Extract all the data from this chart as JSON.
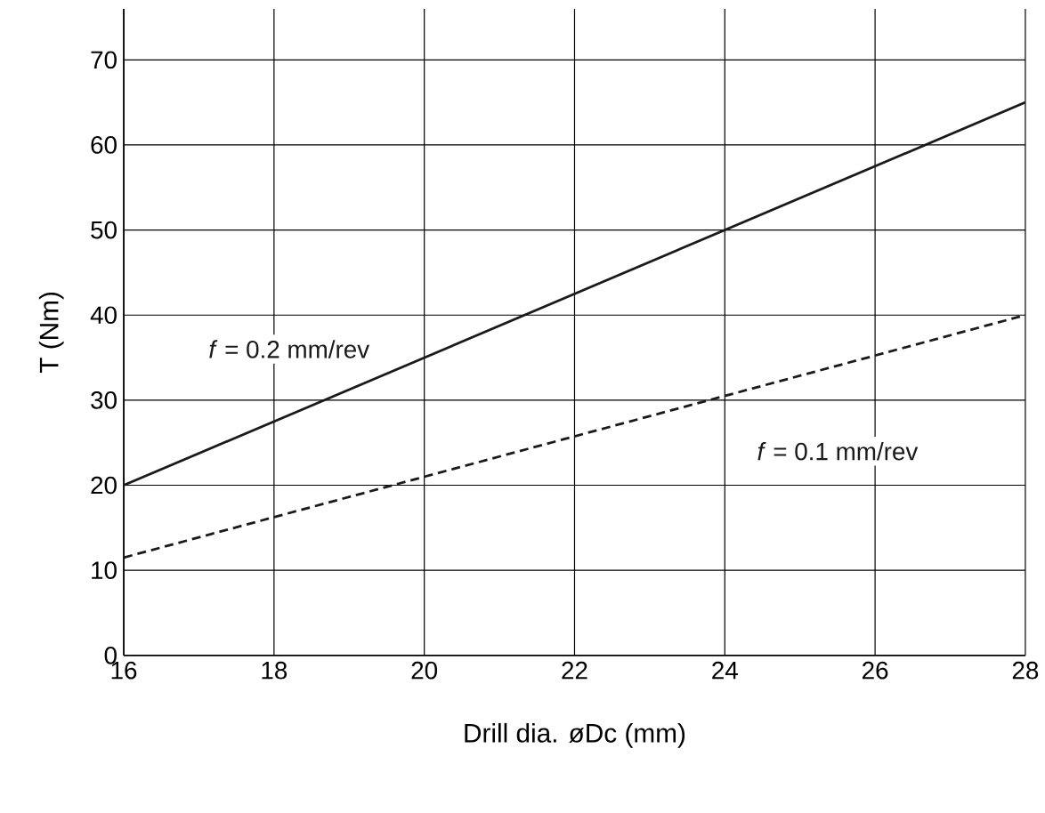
{
  "chart_data": {
    "type": "line",
    "xlabel": "Drill dia. øDc (mm)",
    "ylabel": "T (Nm)",
    "x": [
      16,
      28
    ],
    "series": [
      {
        "name": "*f* = 0.2 mm/rev",
        "color": "#1a1a1a",
        "values": [
          20,
          65
        ],
        "line_style": "solid"
      },
      {
        "name": "*f* = 0.1 mm/rev",
        "color": "#1a1a1a",
        "values": [
          11.5,
          40
        ],
        "line_style": "dashed"
      }
    ],
    "xlim": [
      16,
      28
    ],
    "ylim": [
      0,
      76
    ],
    "xticks": [
      16,
      18,
      20,
      22,
      24,
      26,
      28
    ],
    "yticks": [
      0,
      10,
      20,
      30,
      40,
      50,
      60,
      70
    ],
    "grid": true,
    "legend": false,
    "marker": "none"
  }
}
